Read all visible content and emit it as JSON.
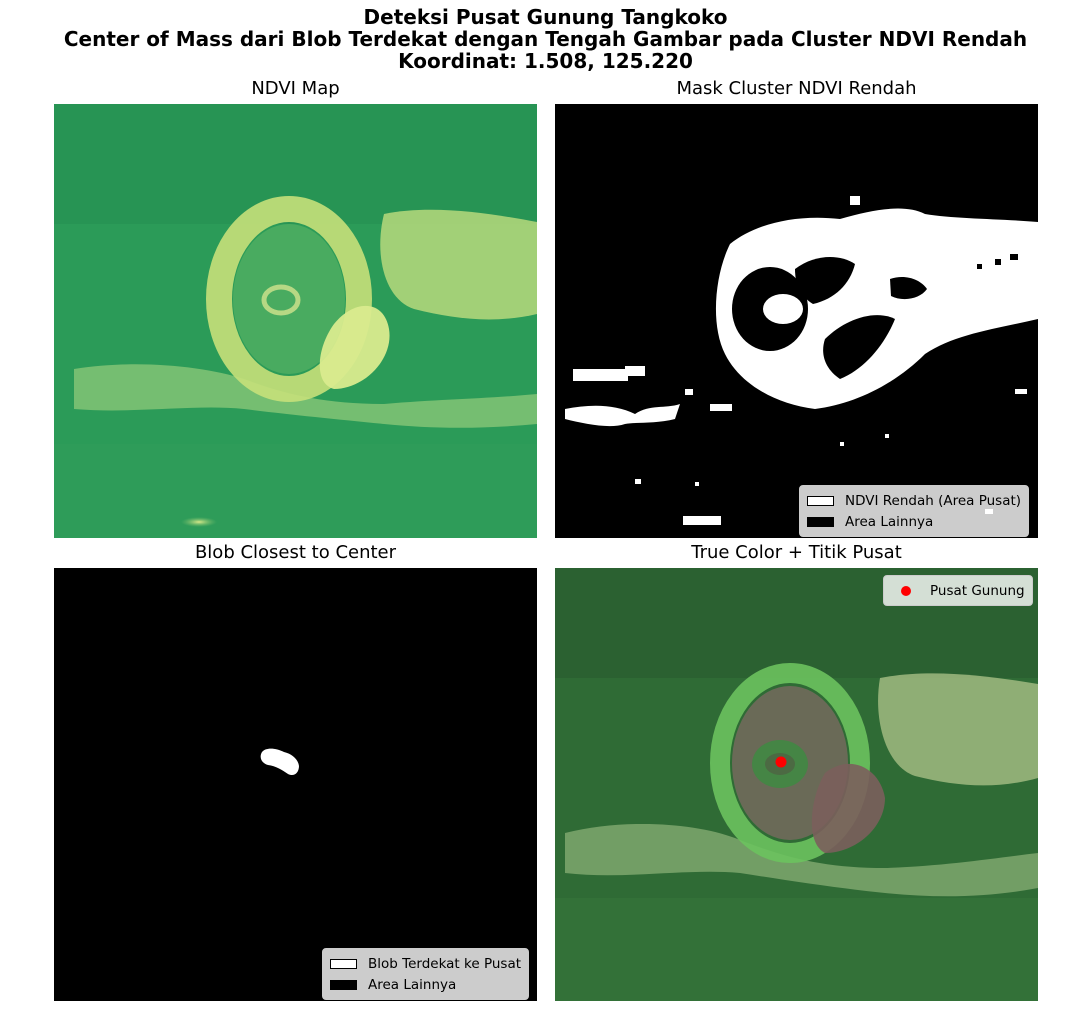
{
  "figure": {
    "title_lines": [
      "Deteksi Pusat Gunung Tangkoko",
      "Center of Mass dari Blob Terdekat dengan Tengah Gambar pada Cluster NDVI Rendah",
      "Koordinat: 1.508, 125.220"
    ]
  },
  "panels": {
    "ndvi": {
      "title": "NDVI Map"
    },
    "mask": {
      "title": "Mask Cluster NDVI Rendah",
      "legend": [
        {
          "label": "NDVI Rendah (Area Pusat)",
          "color": "#ffffff"
        },
        {
          "label": "Area Lainnya",
          "color": "#000000"
        }
      ]
    },
    "blob": {
      "title": "Blob Closest to Center",
      "legend": [
        {
          "label": "Blob Terdekat ke Pusat",
          "color": "#ffffff"
        },
        {
          "label": "Area Lainnya",
          "color": "#000000"
        }
      ]
    },
    "truecolor": {
      "title": "True Color + Titik Pusat",
      "legend": [
        {
          "label": "Pusat Gunung",
          "color": "#ff0000",
          "marker": "circle"
        }
      ]
    }
  },
  "colors": {
    "ndvi_base": "#2a9a58",
    "ndvi_low": "#c6e07a",
    "mask_white": "#ffffff",
    "mask_black": "#000000",
    "center_point": "#ff0000"
  }
}
